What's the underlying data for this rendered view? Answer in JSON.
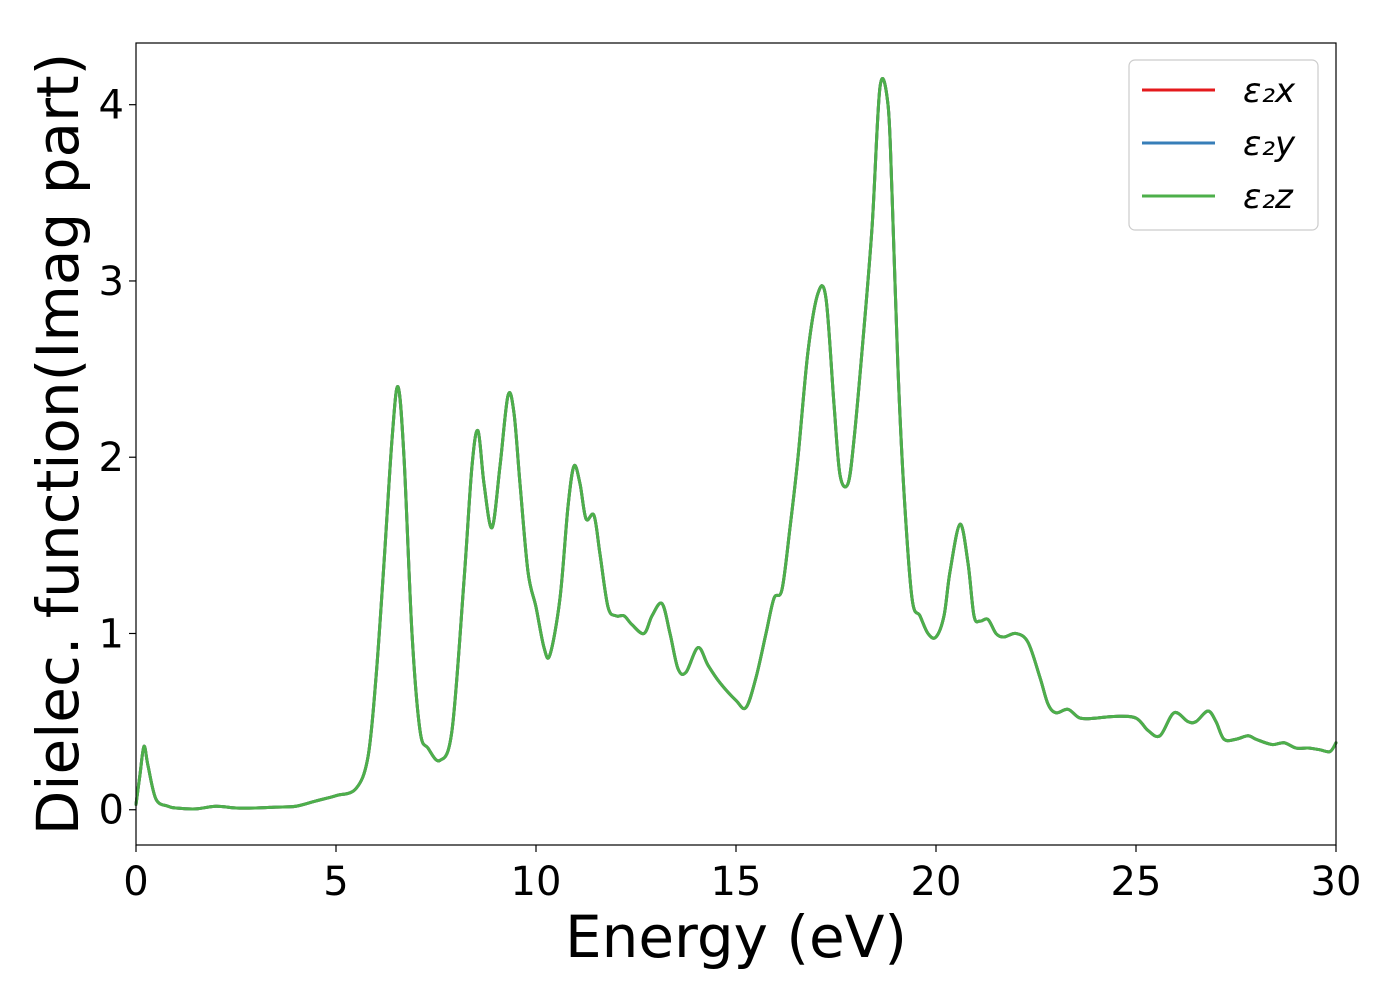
{
  "chart_data": {
    "type": "line",
    "xlabel": "Energy (eV)",
    "ylabel": "Dielec. function(Imag part)",
    "xlim": [
      0,
      30
    ],
    "ylim": [
      -0.2,
      4.35
    ],
    "xticks": [
      0,
      5,
      10,
      15,
      20,
      25,
      30
    ],
    "xtick_labels": [
      "0",
      "5",
      "10",
      "15",
      "20",
      "25",
      "30"
    ],
    "yticks": [
      0,
      1,
      2,
      3,
      4
    ],
    "ytick_labels": [
      "0",
      "1",
      "2",
      "3",
      "4"
    ],
    "grid": false,
    "legend_position": "top-right",
    "x": [
      0,
      0.1,
      0.2,
      0.3,
      0.5,
      0.8,
      1.0,
      1.5,
      2.0,
      2.5,
      3.0,
      3.5,
      4.0,
      4.5,
      5.0,
      5.5,
      5.8,
      6.0,
      6.2,
      6.4,
      6.55,
      6.7,
      6.9,
      7.1,
      7.3,
      7.6,
      7.9,
      8.2,
      8.4,
      8.55,
      8.7,
      8.9,
      9.1,
      9.3,
      9.45,
      9.6,
      9.8,
      10.0,
      10.2,
      10.35,
      10.6,
      10.8,
      10.95,
      11.1,
      11.25,
      11.45,
      11.6,
      11.8,
      12.0,
      12.2,
      12.4,
      12.7,
      12.9,
      13.15,
      13.35,
      13.55,
      13.75,
      14.05,
      14.3,
      14.6,
      15.0,
      15.25,
      15.5,
      15.75,
      15.95,
      16.15,
      16.35,
      16.55,
      16.8,
      17.05,
      17.25,
      17.45,
      17.6,
      17.8,
      17.95,
      18.15,
      18.4,
      18.6,
      18.8,
      18.9,
      19.05,
      19.2,
      19.4,
      19.6,
      19.8,
      20.0,
      20.2,
      20.35,
      20.6,
      20.8,
      20.95,
      21.1,
      21.3,
      21.5,
      21.7,
      22.0,
      22.3,
      22.6,
      22.8,
      23.0,
      23.3,
      23.6,
      24.0,
      24.5,
      25.0,
      25.3,
      25.6,
      25.95,
      26.3,
      26.5,
      26.8,
      27.0,
      27.2,
      27.5,
      27.8,
      28.0,
      28.4,
      28.7,
      29.0,
      29.3,
      29.6,
      29.85,
      30.0
    ],
    "series": [
      {
        "name": "ε₂x",
        "color": "#e41a1c",
        "values": [
          0.03,
          0.2,
          0.36,
          0.25,
          0.06,
          0.02,
          0.01,
          0.005,
          0.02,
          0.01,
          0.01,
          0.015,
          0.02,
          0.05,
          0.08,
          0.12,
          0.3,
          0.75,
          1.4,
          2.1,
          2.4,
          2.0,
          1.0,
          0.45,
          0.35,
          0.28,
          0.45,
          1.3,
          1.95,
          2.15,
          1.85,
          1.6,
          1.95,
          2.35,
          2.25,
          1.85,
          1.35,
          1.15,
          0.92,
          0.88,
          1.2,
          1.72,
          1.95,
          1.85,
          1.65,
          1.67,
          1.45,
          1.15,
          1.1,
          1.1,
          1.05,
          1.0,
          1.1,
          1.17,
          1.0,
          0.8,
          0.78,
          0.92,
          0.82,
          0.72,
          0.62,
          0.58,
          0.75,
          1.0,
          1.2,
          1.25,
          1.6,
          2.0,
          2.6,
          2.93,
          2.9,
          2.3,
          1.9,
          1.85,
          2.1,
          2.6,
          3.3,
          4.1,
          4.0,
          3.5,
          2.5,
          1.8,
          1.2,
          1.1,
          1.0,
          0.98,
          1.1,
          1.35,
          1.62,
          1.4,
          1.1,
          1.07,
          1.08,
          1.0,
          0.98,
          1.0,
          0.95,
          0.75,
          0.6,
          0.55,
          0.57,
          0.52,
          0.52,
          0.53,
          0.52,
          0.45,
          0.42,
          0.55,
          0.5,
          0.5,
          0.56,
          0.5,
          0.4,
          0.4,
          0.42,
          0.4,
          0.37,
          0.38,
          0.35,
          0.35,
          0.34,
          0.33,
          0.38
        ]
      },
      {
        "name": "ε₂y",
        "color": "#377eb8",
        "values": [
          0.03,
          0.2,
          0.36,
          0.25,
          0.06,
          0.02,
          0.01,
          0.005,
          0.02,
          0.01,
          0.01,
          0.015,
          0.02,
          0.05,
          0.08,
          0.12,
          0.3,
          0.75,
          1.4,
          2.1,
          2.4,
          2.0,
          1.0,
          0.45,
          0.35,
          0.28,
          0.45,
          1.3,
          1.95,
          2.15,
          1.85,
          1.6,
          1.95,
          2.35,
          2.25,
          1.85,
          1.35,
          1.15,
          0.92,
          0.88,
          1.2,
          1.72,
          1.95,
          1.85,
          1.65,
          1.67,
          1.45,
          1.15,
          1.1,
          1.1,
          1.05,
          1.0,
          1.1,
          1.17,
          1.0,
          0.8,
          0.78,
          0.92,
          0.82,
          0.72,
          0.62,
          0.58,
          0.75,
          1.0,
          1.2,
          1.25,
          1.6,
          2.0,
          2.6,
          2.93,
          2.9,
          2.3,
          1.9,
          1.85,
          2.1,
          2.6,
          3.3,
          4.1,
          4.0,
          3.5,
          2.5,
          1.8,
          1.2,
          1.1,
          1.0,
          0.98,
          1.1,
          1.35,
          1.62,
          1.4,
          1.1,
          1.07,
          1.08,
          1.0,
          0.98,
          1.0,
          0.95,
          0.75,
          0.6,
          0.55,
          0.57,
          0.52,
          0.52,
          0.53,
          0.52,
          0.45,
          0.42,
          0.55,
          0.5,
          0.5,
          0.56,
          0.5,
          0.4,
          0.4,
          0.42,
          0.4,
          0.37,
          0.38,
          0.35,
          0.35,
          0.34,
          0.33,
          0.38
        ]
      },
      {
        "name": "ε₂z",
        "color": "#4daf4a",
        "values": [
          0.03,
          0.2,
          0.36,
          0.25,
          0.06,
          0.02,
          0.01,
          0.005,
          0.02,
          0.01,
          0.01,
          0.015,
          0.02,
          0.05,
          0.08,
          0.12,
          0.3,
          0.75,
          1.4,
          2.1,
          2.4,
          2.0,
          1.0,
          0.45,
          0.35,
          0.28,
          0.45,
          1.3,
          1.95,
          2.15,
          1.85,
          1.6,
          1.95,
          2.35,
          2.25,
          1.85,
          1.35,
          1.15,
          0.92,
          0.88,
          1.2,
          1.72,
          1.95,
          1.85,
          1.65,
          1.67,
          1.45,
          1.15,
          1.1,
          1.1,
          1.05,
          1.0,
          1.1,
          1.17,
          1.0,
          0.8,
          0.78,
          0.92,
          0.82,
          0.72,
          0.62,
          0.58,
          0.75,
          1.0,
          1.2,
          1.25,
          1.6,
          2.0,
          2.6,
          2.93,
          2.9,
          2.3,
          1.9,
          1.85,
          2.1,
          2.6,
          3.3,
          4.1,
          4.0,
          3.5,
          2.5,
          1.8,
          1.2,
          1.1,
          1.0,
          0.98,
          1.1,
          1.35,
          1.62,
          1.4,
          1.1,
          1.07,
          1.08,
          1.0,
          0.98,
          1.0,
          0.95,
          0.75,
          0.6,
          0.55,
          0.57,
          0.52,
          0.52,
          0.53,
          0.52,
          0.45,
          0.42,
          0.55,
          0.5,
          0.5,
          0.56,
          0.5,
          0.4,
          0.4,
          0.42,
          0.4,
          0.37,
          0.38,
          0.35,
          0.35,
          0.34,
          0.33,
          0.38
        ]
      }
    ]
  }
}
